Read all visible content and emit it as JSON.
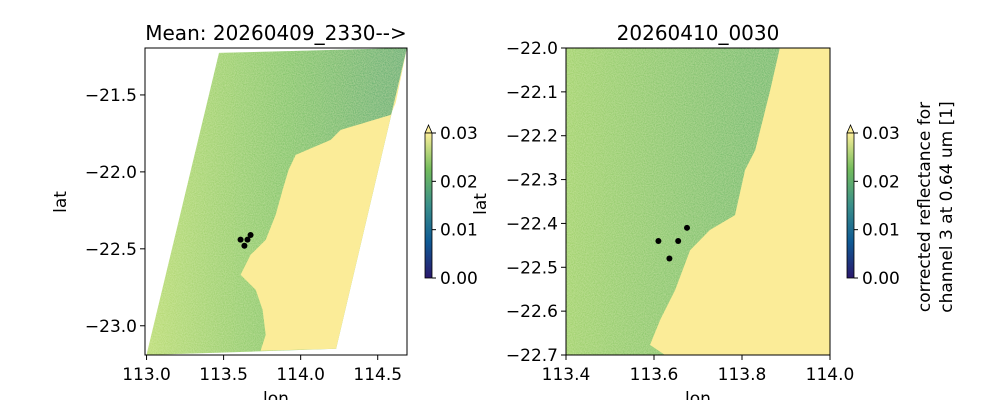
{
  "chart_data": [
    {
      "type": "heatmap",
      "title": "Mean: 20260409_2330-->",
      "xlabel": "lon",
      "ylabel": "lat",
      "xlim": [
        112.99,
        114.69
      ],
      "ylim": [
        -23.19,
        -21.195
      ],
      "xticks": [
        113.0,
        113.5,
        114.0,
        114.5
      ],
      "xtick_labels": [
        "113.0",
        "113.5",
        "114.0",
        "114.5"
      ],
      "yticks": [
        -21.5,
        -22.0,
        -22.5,
        -23.0
      ],
      "ytick_labels": [
        "−21.5",
        "−22.0",
        "−22.5",
        "−23.0"
      ],
      "swath": [
        [
          113.47,
          -21.227
        ],
        [
          114.69,
          -21.195
        ],
        [
          114.23,
          -23.15
        ],
        [
          113.0,
          -23.19
        ]
      ],
      "coastline": [
        [
          114.617,
          -21.552
        ],
        [
          114.584,
          -21.63
        ],
        [
          114.26,
          -21.727
        ],
        [
          114.195,
          -21.792
        ],
        [
          113.968,
          -21.89
        ],
        [
          113.922,
          -21.987
        ],
        [
          113.883,
          -22.117
        ],
        [
          113.838,
          -22.279
        ],
        [
          113.773,
          -22.442
        ],
        [
          113.675,
          -22.539
        ],
        [
          113.61,
          -22.669
        ],
        [
          113.708,
          -22.766
        ],
        [
          113.753,
          -22.896
        ],
        [
          113.773,
          -23.058
        ],
        [
          113.74,
          -23.162
        ]
      ],
      "land_closure": [
        [
          114.23,
          -23.15
        ],
        [
          114.69,
          -21.195
        ]
      ],
      "points": [
        [
          113.61,
          -22.44
        ],
        [
          113.675,
          -22.41
        ],
        [
          113.655,
          -22.44
        ],
        [
          113.635,
          -22.48
        ]
      ],
      "colorbar": {
        "range": [
          0.0,
          0.03
        ],
        "extend": "max",
        "ticks": [
          0.0,
          0.01,
          0.02,
          0.03
        ],
        "tick_labels": [
          "0.00",
          "0.01",
          "0.02",
          "0.03"
        ],
        "label": "lat"
      }
    },
    {
      "type": "heatmap",
      "title": "20260410_0030",
      "xlabel": "lon",
      "ylabel": "lat",
      "xlim": [
        113.4,
        114.0
      ],
      "ylim": [
        -22.7,
        -22.0
      ],
      "xticks": [
        113.4,
        113.6,
        113.8,
        114.0
      ],
      "xtick_labels": [
        "113.4",
        "113.6",
        "113.8",
        "114.0"
      ],
      "yticks": [
        -22.0,
        -22.1,
        -22.2,
        -22.3,
        -22.4,
        -22.5,
        -22.6,
        -22.7
      ],
      "ytick_labels": [
        "−22.0",
        "−22.1",
        "−22.2",
        "−22.3",
        "−22.4",
        "−22.5",
        "−22.6",
        "−22.7"
      ],
      "swath": [
        [
          113.4,
          -22.0
        ],
        [
          114.0,
          -22.0
        ],
        [
          114.0,
          -22.7
        ],
        [
          113.4,
          -22.7
        ]
      ],
      "coastline": [
        [
          113.886,
          -22.0
        ],
        [
          113.864,
          -22.096
        ],
        [
          113.83,
          -22.233
        ],
        [
          113.807,
          -22.278
        ],
        [
          113.784,
          -22.381
        ],
        [
          113.727,
          -22.415
        ],
        [
          113.682,
          -22.461
        ],
        [
          113.648,
          -22.552
        ],
        [
          113.614,
          -22.62
        ],
        [
          113.591,
          -22.677
        ],
        [
          113.625,
          -22.7
        ]
      ],
      "land_closure": [
        [
          114.0,
          -22.7
        ],
        [
          114.0,
          -22.0
        ]
      ],
      "points": [
        [
          113.61,
          -22.44
        ],
        [
          113.675,
          -22.41
        ],
        [
          113.655,
          -22.44
        ],
        [
          113.635,
          -22.48
        ]
      ],
      "colorbar": {
        "range": [
          0.0,
          0.03
        ],
        "extend": "max",
        "ticks": [
          0.0,
          0.01,
          0.02,
          0.03
        ],
        "tick_labels": [
          "0.00",
          "0.01",
          "0.02",
          "0.03"
        ],
        "label_line1": "corrected reflectance for",
        "label_line2": "channel 3 at 0.64 um [1]"
      }
    }
  ],
  "colors": {
    "land": "#fbec98",
    "ocean_light": "#b3d86c",
    "ocean_dark": "#5eae70",
    "points": "#000000",
    "cmap": [
      "#2a186c",
      "#0f5a94",
      "#3a8f8a",
      "#73bc5c",
      "#fdef9a"
    ]
  }
}
